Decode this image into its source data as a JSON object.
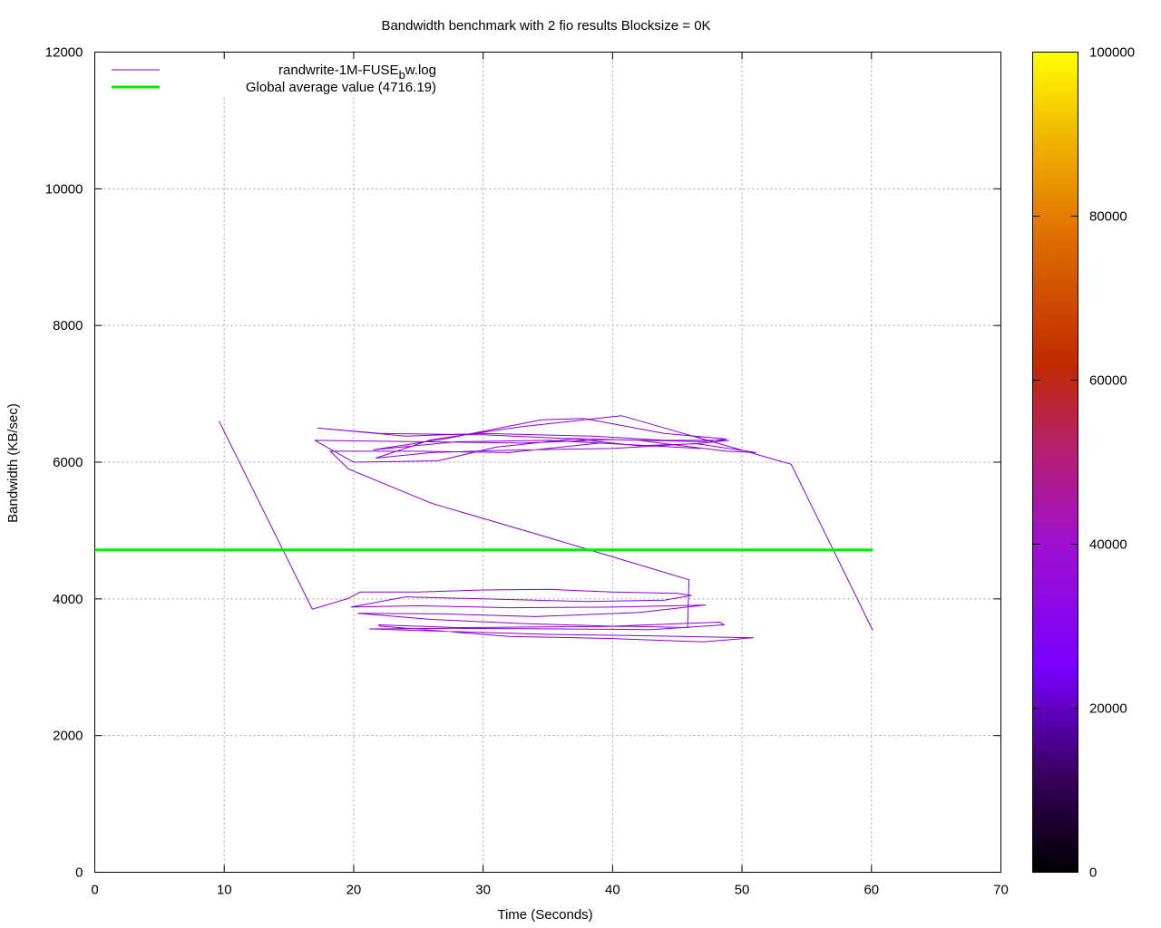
{
  "chart_data": {
    "type": "line",
    "title": "Bandwidth benchmark with 2 fio results  Blocksize = 0K",
    "xlabel": "Time (Seconds)",
    "ylabel": "Bandwidth (KB/sec)",
    "xlim": [
      0,
      70
    ],
    "ylim": [
      0,
      12000
    ],
    "xticks": [
      "0",
      "10",
      "20",
      "30",
      "40",
      "50",
      "60",
      "70"
    ],
    "yticks": [
      "0",
      "2000",
      "4000",
      "6000",
      "8000",
      "10000",
      "12000"
    ],
    "grid": true,
    "legend_position": "top-left",
    "colorbar": {
      "range": [
        0,
        100000
      ],
      "ticks": [
        "0",
        "20000",
        "40000",
        "60000",
        "80000",
        "100000"
      ]
    },
    "series": [
      {
        "name_main": "randwrite-1M-FUSE",
        "name_sub": "b",
        "name_tail": "w.log",
        "color": "#8a00d4",
        "points": [
          [
            9.6,
            6600
          ],
          [
            16.8,
            3850
          ],
          [
            19.5,
            4000
          ],
          [
            20.5,
            4100
          ],
          [
            25,
            4100
          ],
          [
            30,
            4130
          ],
          [
            35,
            4140
          ],
          [
            40,
            4100
          ],
          [
            45,
            4080
          ],
          [
            46.1,
            4050
          ],
          [
            44,
            3980
          ],
          [
            38,
            3960
          ],
          [
            30,
            4000
          ],
          [
            24,
            4030
          ],
          [
            19.8,
            3880
          ],
          [
            25,
            3900
          ],
          [
            32,
            3870
          ],
          [
            40,
            3880
          ],
          [
            47.2,
            3910
          ],
          [
            42,
            3800
          ],
          [
            34,
            3740
          ],
          [
            27,
            3780
          ],
          [
            20.3,
            3790
          ],
          [
            26,
            3700
          ],
          [
            33,
            3640
          ],
          [
            40,
            3600
          ],
          [
            48.3,
            3660
          ],
          [
            48.6,
            3620
          ],
          [
            43,
            3550
          ],
          [
            36,
            3560
          ],
          [
            28,
            3570
          ],
          [
            21.2,
            3560
          ],
          [
            28,
            3520
          ],
          [
            35,
            3480
          ],
          [
            43,
            3460
          ],
          [
            50.9,
            3430
          ],
          [
            47,
            3370
          ],
          [
            40,
            3420
          ],
          [
            32,
            3450
          ],
          [
            22.1,
            3600
          ],
          [
            21.9,
            3620
          ],
          [
            28,
            3580
          ],
          [
            35,
            3590
          ],
          [
            41,
            3600
          ],
          [
            45.8,
            3580
          ],
          [
            45.9,
            4280
          ],
          [
            35,
            4900
          ],
          [
            26,
            5400
          ],
          [
            19.6,
            5900
          ],
          [
            18.2,
            6160
          ],
          [
            25,
            6160
          ],
          [
            32,
            6140
          ],
          [
            39,
            6280
          ],
          [
            46.8,
            6200
          ],
          [
            42,
            6250
          ],
          [
            35,
            6320
          ],
          [
            28,
            6300
          ],
          [
            21.5,
            6180
          ],
          [
            27,
            6340
          ],
          [
            34.5,
            6620
          ],
          [
            37.8,
            6640
          ],
          [
            44,
            6420
          ],
          [
            48.8,
            6340
          ],
          [
            47,
            6300
          ],
          [
            40,
            6330
          ],
          [
            33,
            6280
          ],
          [
            25,
            6300
          ],
          [
            17,
            6320
          ],
          [
            20,
            6000
          ],
          [
            26.5,
            6020
          ],
          [
            31,
            6220
          ],
          [
            37,
            6340
          ],
          [
            42,
            6240
          ],
          [
            46.5,
            6270
          ],
          [
            51.1,
            6140
          ],
          [
            48.8,
            6160
          ],
          [
            42,
            6320
          ],
          [
            36,
            6350
          ],
          [
            30,
            6400
          ],
          [
            22,
            6420
          ],
          [
            17.2,
            6500
          ],
          [
            24,
            6380
          ],
          [
            30,
            6420
          ],
          [
            38.5,
            6380
          ],
          [
            44,
            6320
          ],
          [
            49,
            6320
          ],
          [
            47,
            6280
          ],
          [
            40,
            6200
          ],
          [
            33,
            6180
          ],
          [
            26,
            6140
          ],
          [
            21.7,
            6060
          ],
          [
            26,
            6330
          ],
          [
            33,
            6520
          ],
          [
            40.7,
            6680
          ],
          [
            53.8,
            5970
          ],
          [
            60.1,
            3540
          ]
        ]
      },
      {
        "name": "Global average value (4716.19)",
        "color": "#00ee00",
        "points": [
          [
            0,
            4716.19
          ],
          [
            60.1,
            4716.19
          ]
        ]
      }
    ]
  }
}
